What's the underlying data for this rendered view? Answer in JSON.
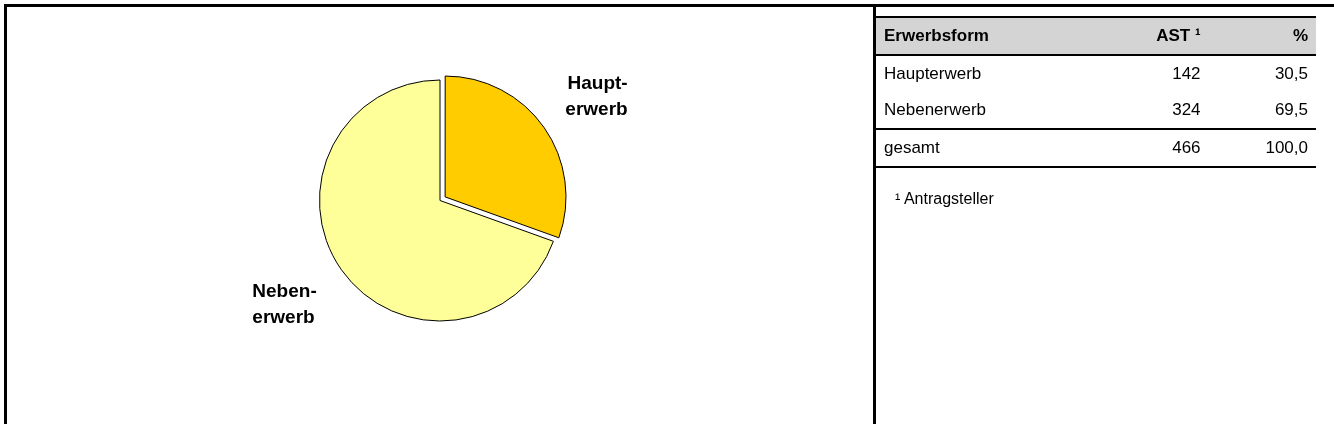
{
  "chart_data": {
    "type": "pie",
    "categories": [
      "Haupt-\nerwerb",
      "Neben-\nerwerb"
    ],
    "values": [
      30.5,
      69.5
    ],
    "colors": [
      "#ffcc00",
      "#ffff99"
    ],
    "legend": false,
    "annotations": [
      "Erwerbsform",
      "AST ¹",
      "%",
      "Haupterwerb",
      "142",
      "30,5",
      "Nebenerwerb",
      "324",
      "69,5",
      "gesamt",
      "466",
      "100,0",
      "¹ Antragsteller"
    ]
  }
}
